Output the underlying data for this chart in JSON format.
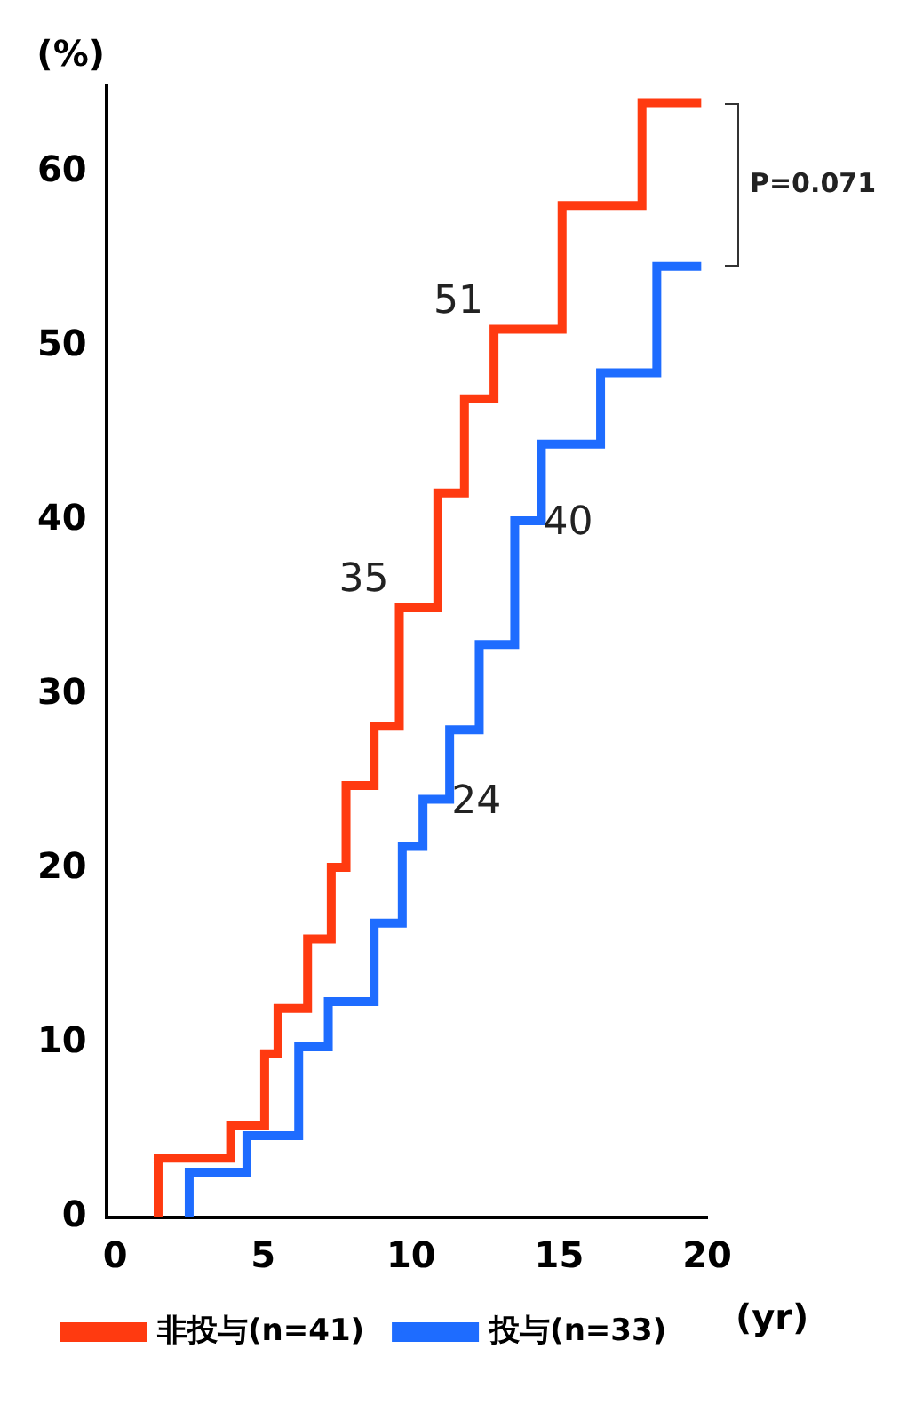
{
  "chart_data": {
    "type": "step",
    "xlabel": "(yr)",
    "ylabel": "(%)",
    "xlim": [
      -0.3,
      20
    ],
    "xticks": [
      0,
      5,
      10,
      15,
      20
    ],
    "ylim": [
      0,
      65
    ],
    "yticks": [
      0,
      10,
      20,
      30,
      40,
      50,
      60
    ],
    "grid": false,
    "legend": "bottom",
    "line_style": "solid",
    "marker": "none",
    "series": [
      {
        "name": "非投与(n=41)",
        "color": "#ff3a10",
        "x": [
          1.45,
          1.45,
          3.9,
          5.05,
          5.5,
          6.5,
          7.3,
          7.8,
          8.75,
          9.6,
          10.9,
          11.8,
          12.8,
          15.1,
          17.8,
          19.8
        ],
        "values": [
          0,
          3.4,
          5.3,
          9.4,
          12.0,
          16.0,
          20.1,
          24.8,
          28.2,
          35,
          41.6,
          47.0,
          51,
          58.1,
          64.0,
          64.0
        ]
      },
      {
        "name": "投与(n=33)",
        "color": "#1e6cff",
        "x": [
          2.5,
          2.5,
          4.45,
          6.2,
          7.2,
          8.75,
          9.7,
          10.4,
          11.3,
          12.3,
          13.5,
          14.4,
          16.4,
          18.3,
          19.8
        ],
        "values": [
          0,
          2.6,
          4.7,
          9.8,
          12.4,
          16.9,
          21.3,
          24,
          28.0,
          32.9,
          40,
          44.4,
          48.5,
          54.6,
          54.6
        ]
      }
    ],
    "annotations": [
      {
        "text": "35",
        "x": 9.6,
        "y": 35
      },
      {
        "text": "51",
        "x": 12.8,
        "y": 51
      },
      {
        "text": "24",
        "x": 10.4,
        "y": 24
      },
      {
        "text": "40",
        "x": 13.5,
        "y": 40
      },
      "P=0.071"
    ]
  }
}
